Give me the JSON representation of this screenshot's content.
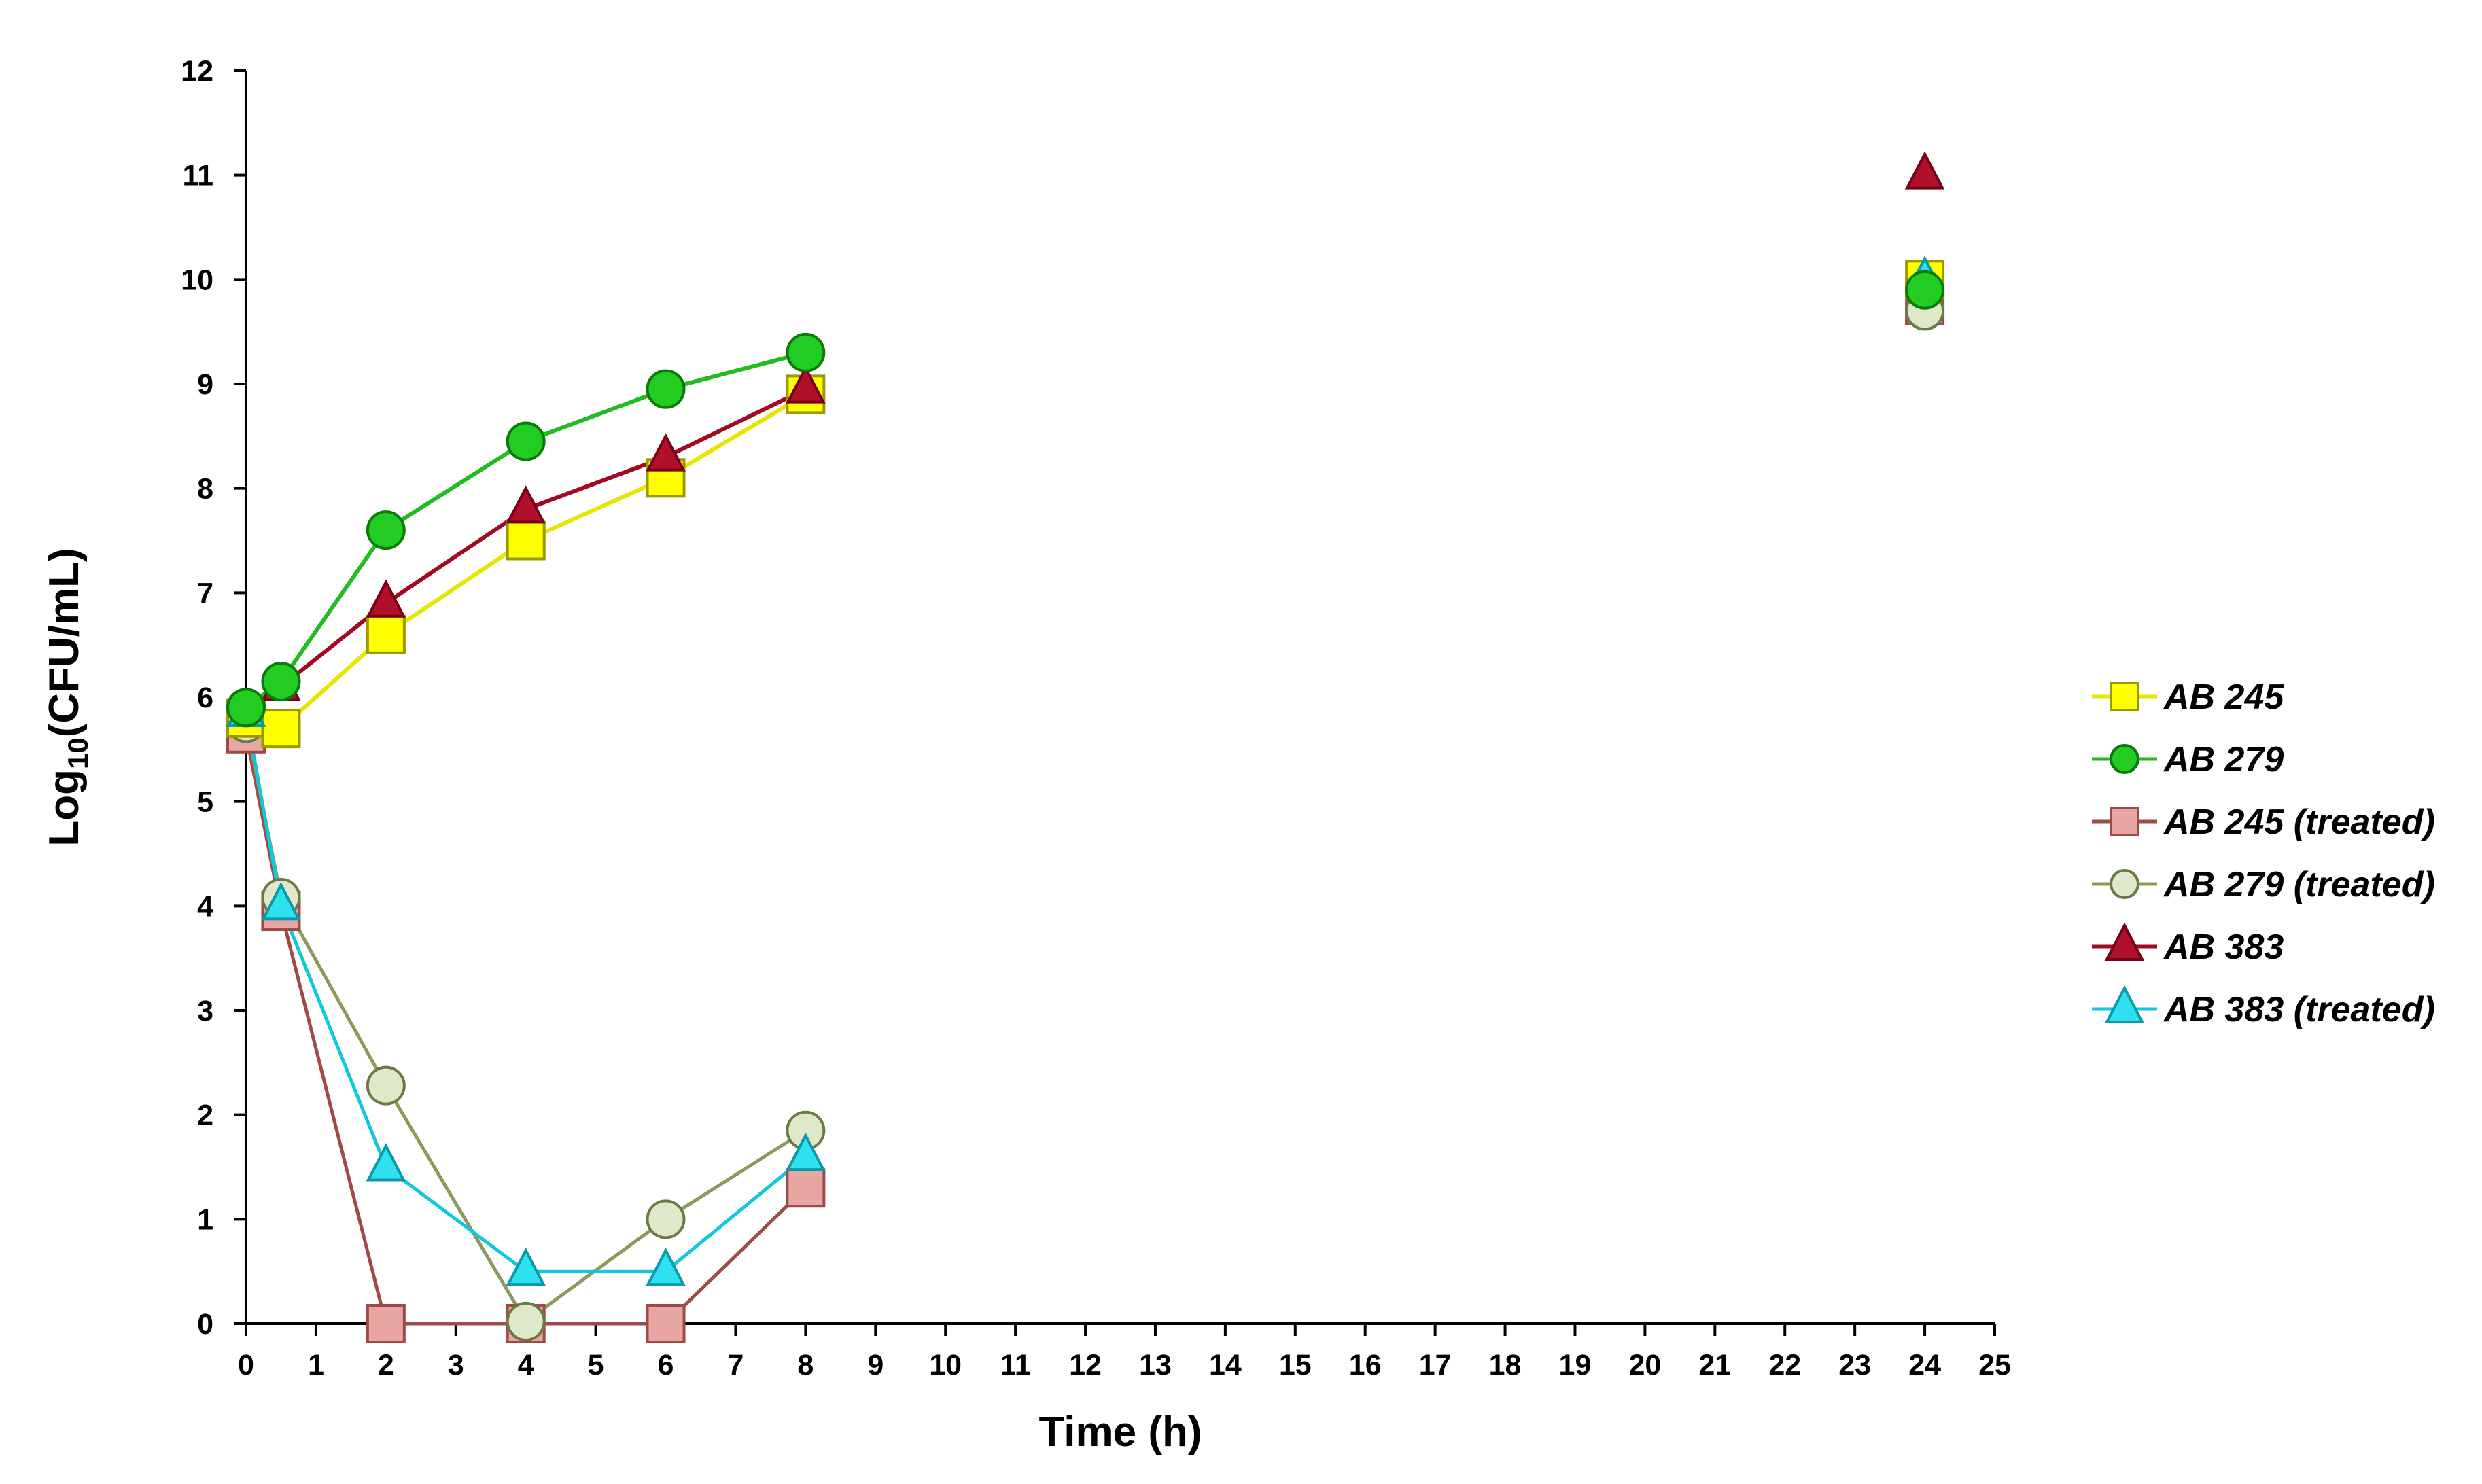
{
  "chart_data": {
    "type": "line",
    "xlabel": "Time (h)",
    "ylabel": {
      "prefix": "Log",
      "subscript": "10",
      "suffix": "(CFU/mL)"
    },
    "xlim": [
      0,
      25
    ],
    "ylim": [
      0,
      12
    ],
    "xticks": [
      "0",
      "1",
      "2",
      "3",
      "4",
      "5",
      "6",
      "7",
      "8",
      "9",
      "10",
      "11",
      "12",
      "13",
      "14",
      "15",
      "16",
      "17",
      "18",
      "19",
      "20",
      "21",
      "22",
      "23",
      "24",
      "25"
    ],
    "yticks": [
      "0",
      "1",
      "2",
      "3",
      "4",
      "5",
      "6",
      "7",
      "8",
      "9",
      "10",
      "11",
      "12"
    ],
    "grid": false,
    "legend_position": "right",
    "series": [
      {
        "name": "AB 245",
        "marker": "square",
        "color": "#ffff00",
        "line_color": "#e6e600",
        "edge_color": "#9a9a00",
        "points": [
          [
            0,
            5.8
          ],
          [
            0.5,
            5.7
          ],
          [
            2,
            6.6
          ],
          [
            4,
            7.5
          ],
          [
            6,
            8.1
          ],
          [
            8,
            8.9
          ]
        ],
        "extra_points": [
          [
            24,
            10.0
          ]
        ]
      },
      {
        "name": "AB 279",
        "marker": "circle",
        "color": "#22cc22",
        "line_color": "#22bb22",
        "edge_color": "#0a7a0a",
        "points": [
          [
            0,
            5.9
          ],
          [
            0.5,
            6.15
          ],
          [
            2,
            7.6
          ],
          [
            4,
            8.45
          ],
          [
            6,
            8.95
          ],
          [
            8,
            9.3
          ]
        ],
        "extra_points": [
          [
            24,
            9.9
          ]
        ]
      },
      {
        "name": "AB 245 (treated)",
        "marker": "square",
        "color": "#e8a6a2",
        "line_color": "#9e4a46",
        "edge_color": "#9e4a46",
        "points": [
          [
            0,
            5.65
          ],
          [
            0.5,
            3.95
          ],
          [
            2,
            0
          ],
          [
            4,
            0
          ],
          [
            6,
            0
          ],
          [
            8,
            1.3
          ]
        ],
        "extra_points": [
          [
            24,
            9.75
          ]
        ]
      },
      {
        "name": "AB 279 (treated)",
        "marker": "circle",
        "color": "#dfe8c8",
        "line_color": "#8a9a5a",
        "edge_color": "#6b7a45",
        "points": [
          [
            0,
            5.75
          ],
          [
            0.5,
            4.08
          ],
          [
            2,
            2.28
          ],
          [
            4,
            0.02
          ],
          [
            6,
            1.0
          ],
          [
            8,
            1.85
          ]
        ],
        "extra_points": [
          [
            24,
            9.7
          ]
        ]
      },
      {
        "name": "AB 383",
        "marker": "triangle",
        "color": "#b0102a",
        "line_color": "#a00a22",
        "edge_color": "#7a0018",
        "points": [
          [
            0,
            5.85
          ],
          [
            0.5,
            6.1
          ],
          [
            2,
            6.9
          ],
          [
            4,
            7.8
          ],
          [
            6,
            8.3
          ],
          [
            8,
            8.95
          ]
        ],
        "extra_points": [
          [
            24,
            11.0
          ]
        ]
      },
      {
        "name": "AB 383 (treated)",
        "marker": "triangle",
        "color": "#2ee0f0",
        "line_color": "#10c8dc",
        "edge_color": "#0a9aaa",
        "points": [
          [
            0,
            5.85
          ],
          [
            0.5,
            4.0
          ],
          [
            2,
            1.5
          ],
          [
            4,
            0.5
          ],
          [
            6,
            0.5
          ],
          [
            8,
            1.6
          ]
        ],
        "extra_points": [
          [
            24,
            10.0
          ]
        ]
      }
    ]
  }
}
